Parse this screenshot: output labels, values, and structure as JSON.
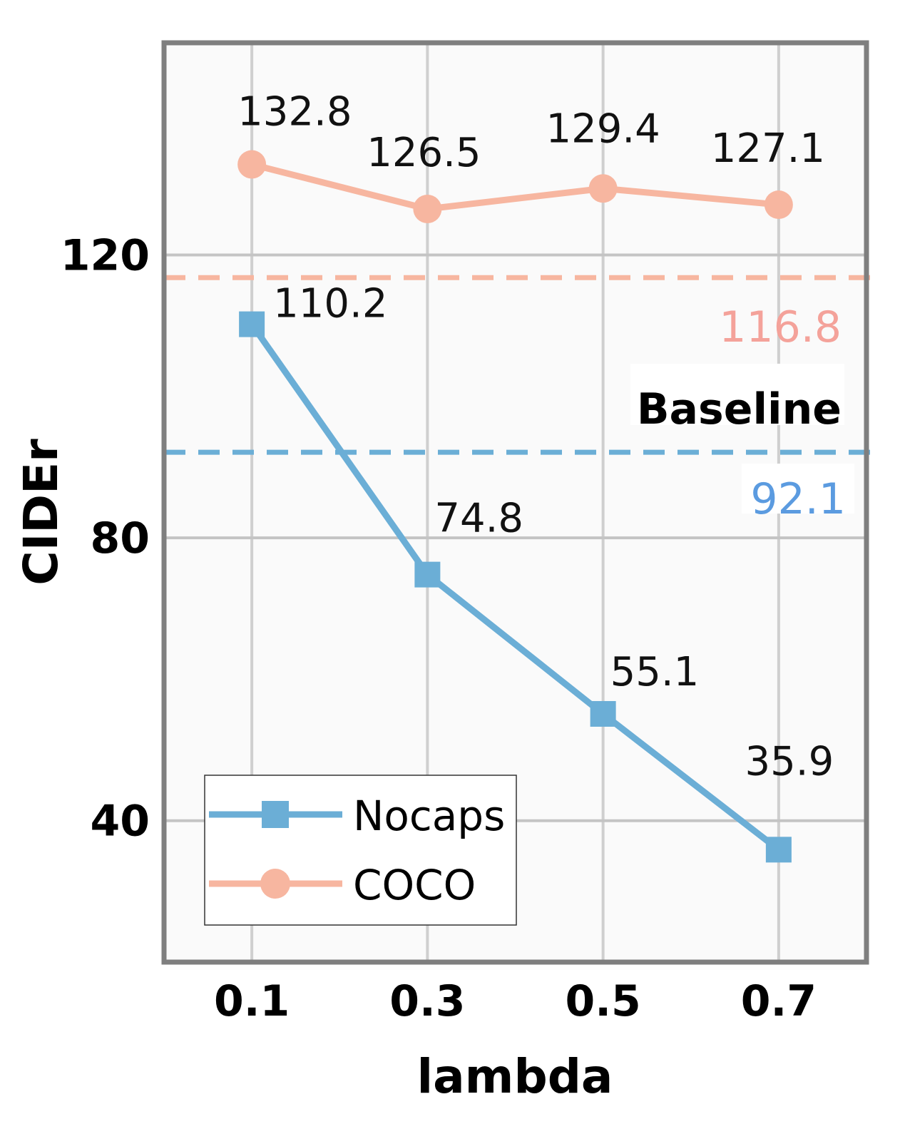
{
  "chart_data": {
    "type": "line",
    "xlabel": "lambda",
    "ylabel": "CIDEr",
    "x": [
      "0.1",
      "0.3",
      "0.5",
      "0.7"
    ],
    "x_values": [
      0.1,
      0.3,
      0.5,
      0.7
    ],
    "xlim": [
      0.0,
      0.8
    ],
    "ylim": [
      20,
      150
    ],
    "yticks": [
      40,
      80,
      120
    ],
    "grid": true,
    "legend_position": "bottom-left",
    "series": [
      {
        "name": "Nocaps",
        "values": [
          110.2,
          74.8,
          55.1,
          35.9
        ],
        "labels": [
          "110.2",
          "74.8",
          "55.1",
          "35.9"
        ],
        "color": "#6BAED6",
        "marker": "square"
      },
      {
        "name": "COCO",
        "values": [
          132.8,
          126.5,
          129.4,
          127.1
        ],
        "labels": [
          "132.8",
          "126.5",
          "129.4",
          "127.1"
        ],
        "color": "#F7B6A0",
        "marker": "circle"
      }
    ],
    "baselines": {
      "title": "Baseline",
      "lines": [
        {
          "value": 116.8,
          "label": "116.8",
          "color": "#F7B6A0",
          "text_color": "#F4A29A",
          "style": "dashed"
        },
        {
          "value": 92.1,
          "label": "92.1",
          "color": "#6BAED6",
          "text_color": "#5B9BE0",
          "style": "dashed"
        }
      ]
    }
  }
}
